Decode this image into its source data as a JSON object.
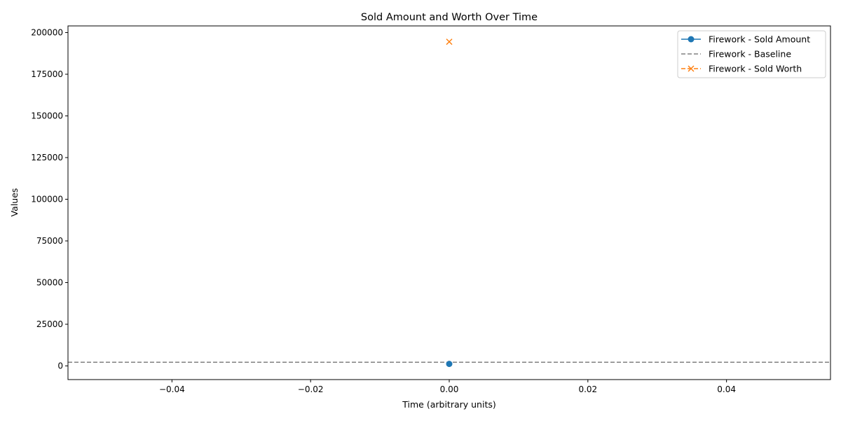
{
  "chart_data": {
    "type": "line",
    "title": "Sold Amount and Worth Over Time",
    "xlabel": "Time (arbitrary units)",
    "ylabel": "Values",
    "xlim": [
      -0.055,
      0.055
    ],
    "ylim": [
      -8200,
      204000
    ],
    "x_ticks": [
      -0.04,
      -0.02,
      0.0,
      0.02,
      0.04
    ],
    "x_tick_labels": [
      "−0.04",
      "−0.02",
      "0.00",
      "0.02",
      "0.04"
    ],
    "y_ticks": [
      0,
      25000,
      50000,
      75000,
      100000,
      125000,
      150000,
      175000,
      200000
    ],
    "y_tick_labels": [
      "0",
      "25000",
      "50000",
      "75000",
      "100000",
      "125000",
      "150000",
      "175000",
      "200000"
    ],
    "grid": false,
    "legend_position": "top-right",
    "series": [
      {
        "name": "Firework - Sold Amount",
        "x": [
          0.0
        ],
        "y": [
          1200
        ],
        "color": "#1f77b4",
        "marker": "circle",
        "linestyle": "solid"
      },
      {
        "name": "Firework - Sold Worth",
        "x": [
          0.0
        ],
        "y": [
          194500
        ],
        "color": "#ff7f0e",
        "marker": "x",
        "linestyle": "dashed"
      }
    ],
    "hlines": [
      {
        "name": "Firework - Baseline",
        "y": 2200,
        "color": "#808080",
        "linestyle": "dashed"
      }
    ],
    "legend_order": [
      "Firework - Sold Amount",
      "Firework - Baseline",
      "Firework - Sold Worth"
    ]
  }
}
